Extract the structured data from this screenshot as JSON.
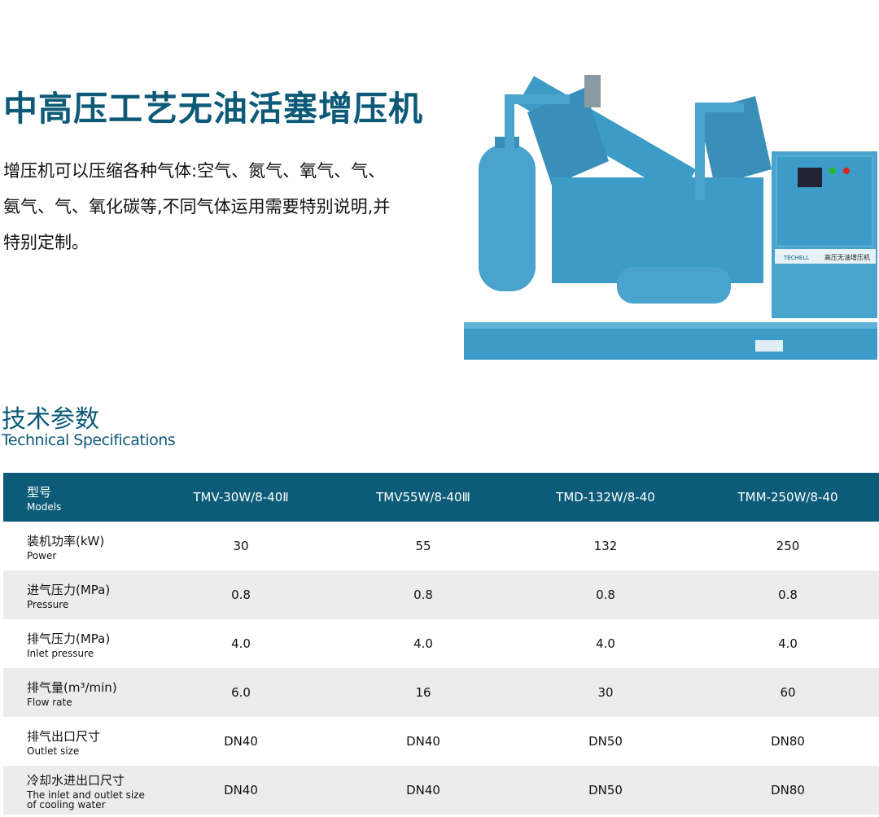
{
  "title": "中高压工艺无油活塞增压机",
  "description": "增压机可以压缩各种气体:空气、氮气、氧气、气、氨气、气、氧化碳等,不同气体运用需要特别说明,并特别定制。",
  "machine_image": {
    "panel_label": "高压无油增压机",
    "logo": "TECHELL",
    "color": "#3d9bc7"
  },
  "section": {
    "title_cn": "技术参数",
    "title_en": "Technical Specifications"
  },
  "colors": {
    "accent": "#0d5a78",
    "header_bg": "#0c5c79",
    "stripe": "#ececec"
  },
  "table": {
    "header": {
      "cn": "型号",
      "en": "Models",
      "models": [
        "TMV-30W/8-40Ⅱ",
        "TMV55W/8-40Ⅲ",
        "TMD-132W/8-40",
        "TMM-250W/8-40"
      ]
    },
    "rows": [
      {
        "cn": "装机功率(kW)",
        "en": "Power",
        "values": [
          "30",
          "55",
          "132",
          "250"
        ]
      },
      {
        "cn": "进气压力(MPa)",
        "en": "Pressure",
        "values": [
          "0.8",
          "0.8",
          "0.8",
          "0.8"
        ]
      },
      {
        "cn": "排气压力(MPa)",
        "en": "Inlet pressure",
        "values": [
          "4.0",
          "4.0",
          "4.0",
          "4.0"
        ]
      },
      {
        "cn": "排气量(m³/min)",
        "en": "Flow rate",
        "values": [
          "6.0",
          "16",
          "30",
          "60"
        ]
      },
      {
        "cn": "排气出口尺寸",
        "en": "Outlet size",
        "values": [
          "DN40",
          "DN40",
          "DN50",
          "DN80"
        ]
      },
      {
        "cn": "冷却水进出口尺寸",
        "en": "The inlet and outlet size of cooling water",
        "values": [
          "DN40",
          "DN40",
          "DN50",
          "DN80"
        ]
      }
    ]
  }
}
